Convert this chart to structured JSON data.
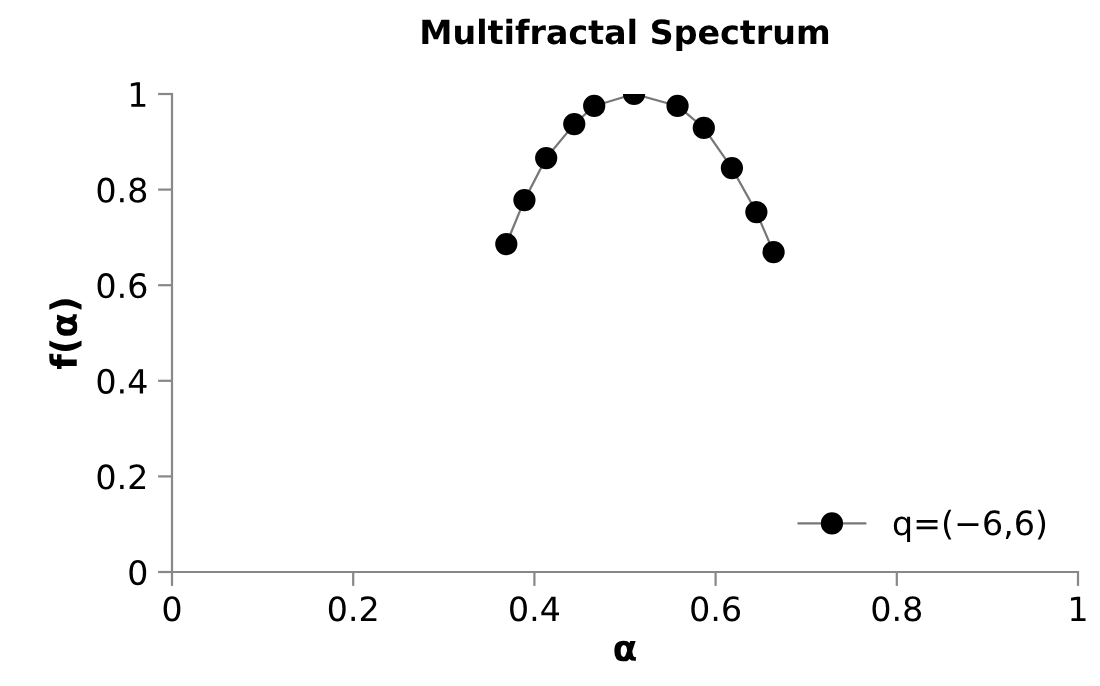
{
  "chart_data": {
    "type": "line",
    "title": "Multifractal Spectrum",
    "xlabel": "α",
    "ylabel": "f(α)",
    "x": [
      0.369,
      0.389,
      0.413,
      0.444,
      0.466,
      0.51,
      0.558,
      0.587,
      0.618,
      0.645,
      0.664
    ],
    "series": [
      {
        "name": "q=(−6,6)",
        "color": "#000000",
        "values": [
          0.686,
          0.778,
          0.866,
          0.937,
          0.975,
          1.0,
          0.975,
          0.929,
          0.845,
          0.753,
          0.669
        ]
      }
    ],
    "xlim": [
      0,
      1
    ],
    "ylim": [
      0,
      1
    ],
    "xticks": [
      0,
      0.2,
      0.4,
      0.6,
      0.8,
      1
    ],
    "yticks": [
      0,
      0.2,
      0.4,
      0.6,
      0.8,
      1
    ],
    "grid": false,
    "legend": "bottom right",
    "marker": "circle",
    "line_style": "solid"
  }
}
